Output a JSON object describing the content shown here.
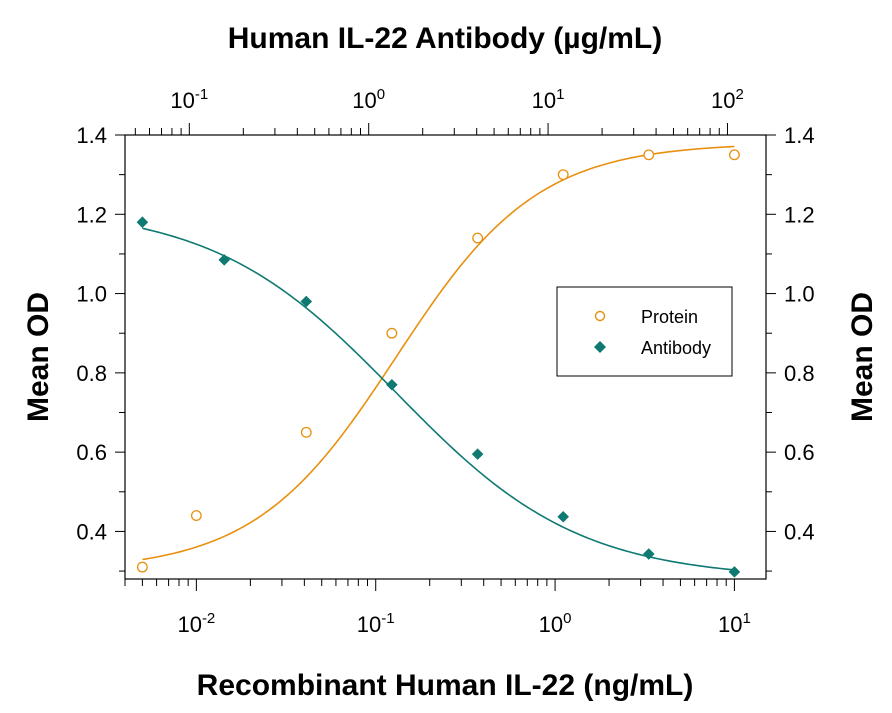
{
  "chart_data": {
    "type": "scatter",
    "top_title": "Human IL-22 Antibody (µg/mL)",
    "xlabel": "Recombinant Human IL-22 (ng/mL)",
    "ylabel_left": "Mean OD",
    "ylabel_right": "Mean OD",
    "x_scale": "log",
    "xlim": [
      0.004,
      15
    ],
    "ylim": [
      0.28,
      1.4
    ],
    "y_ticks": [
      "0.4",
      "0.6",
      "0.8",
      "1.0",
      "1.2",
      "1.4"
    ],
    "x_ticks_bottom": [
      {
        "base": "10",
        "exp": "-2",
        "value": 0.01
      },
      {
        "base": "10",
        "exp": "-1",
        "value": 0.1
      },
      {
        "base": "10",
        "exp": "0",
        "value": 1
      },
      {
        "base": "10",
        "exp": "1",
        "value": 10
      }
    ],
    "x_ticks_top": [
      {
        "base": "10",
        "exp": "-1",
        "value": 0.1
      },
      {
        "base": "10",
        "exp": "0",
        "value": 1
      },
      {
        "base": "10",
        "exp": "1",
        "value": 10
      },
      {
        "base": "10",
        "exp": "2",
        "value": 100
      }
    ],
    "top_axis_xlim": [
      0.0438,
      164
    ],
    "legend_position": "center-right",
    "grid": false,
    "series": [
      {
        "name": "Protein",
        "marker": "open-circle",
        "color": "#e8900f",
        "x": [
          0.005,
          0.01,
          0.041,
          0.123,
          0.37,
          1.11,
          3.33,
          10
        ],
        "y": [
          0.31,
          0.44,
          0.65,
          0.9,
          1.14,
          1.3,
          1.35,
          1.35
        ],
        "fit": {
          "bottom": 0.3,
          "top": 1.38,
          "ec50": 0.13,
          "hill": 1.1
        }
      },
      {
        "name": "Antibody",
        "marker": "filled-diamond",
        "color": "#0f7a72",
        "x": [
          0.005,
          0.0143,
          0.041,
          0.123,
          0.37,
          1.11,
          3.33,
          10
        ],
        "y": [
          1.18,
          1.085,
          0.98,
          0.77,
          0.595,
          0.437,
          0.343,
          0.298
        ],
        "fit": {
          "bottom": 0.28,
          "top": 1.22,
          "ec50": 0.13,
          "hill": -0.85
        }
      }
    ]
  }
}
